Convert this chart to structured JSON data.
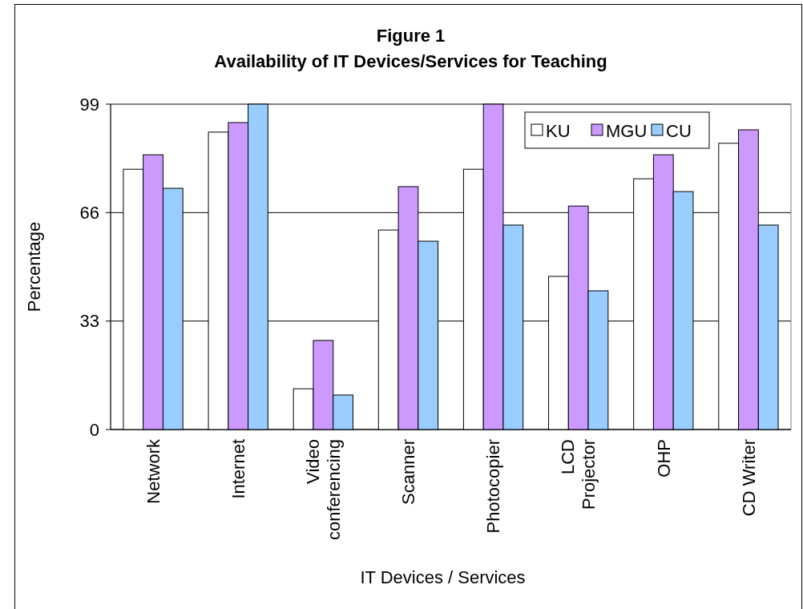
{
  "chart_data": {
    "type": "bar",
    "title": "Figure 1",
    "subtitle": "Availability of IT Devices/Services for Teaching",
    "xlabel": "IT Devices / Services",
    "ylabel": "Percentage",
    "categories": [
      "Network",
      "Internet",
      "Video conferencing",
      "Scanner",
      "Photocopier",
      "LCD Projector",
      "OHP",
      "CD Writer"
    ],
    "series": [
      {
        "name": "KU",
        "color": "#ffffff",
        "values": [
          79.2,
          90.5,
          12.4,
          60.7,
          79.2,
          46.6,
          76.3,
          87.1
        ]
      },
      {
        "name": "MGU",
        "color": "#cc99ff",
        "values": [
          83.6,
          93.4,
          27.1,
          73.9,
          99,
          68.0,
          83.6,
          91.2
        ]
      },
      {
        "name": "CU",
        "color": "#99ccff",
        "values": [
          73.4,
          99,
          10.5,
          57.3,
          62.2,
          42.2,
          72.4,
          62.2
        ]
      }
    ],
    "ylim": [
      0,
      99
    ],
    "yticks": [
      0,
      33,
      66,
      99
    ],
    "grid": "y",
    "legend": "top right"
  }
}
